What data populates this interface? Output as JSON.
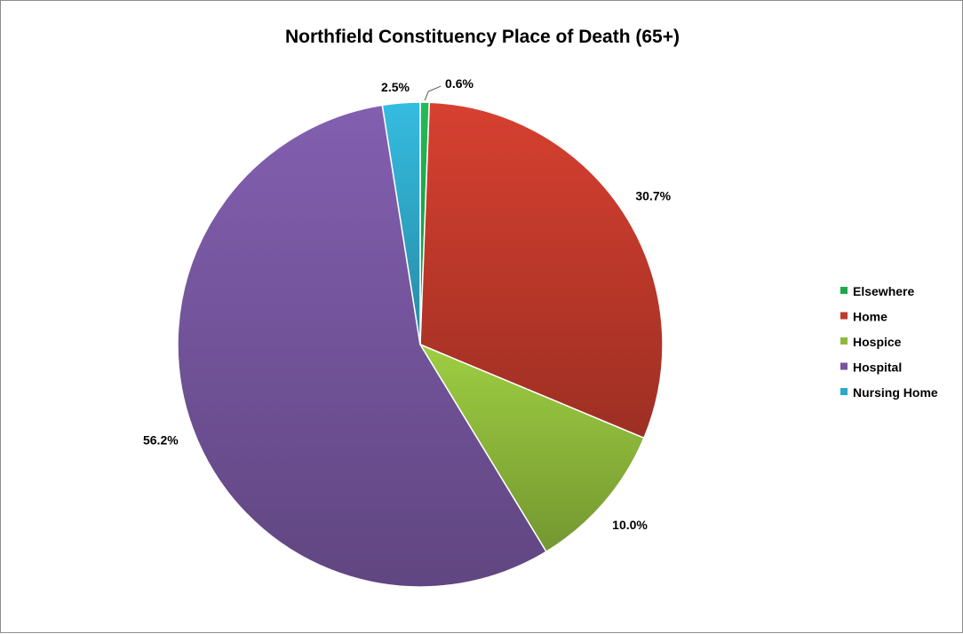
{
  "chart_data": {
    "type": "pie",
    "title": "Northfield Constituency Place of Death (65+)",
    "categories": [
      "Elsewhere",
      "Home",
      "Hospice",
      "Hospital",
      "Nursing Home"
    ],
    "values": [
      0.6,
      30.7,
      10.0,
      56.2,
      2.5
    ],
    "data_labels": [
      "0.6%",
      "30.7%",
      "10.0%",
      "56.2%",
      "2.5%"
    ],
    "value_unit": "%",
    "colors": [
      "#1ea84c",
      "#c0392b",
      "#8db83b",
      "#75559d",
      "#2fa8c8"
    ],
    "legend": {
      "position": "right",
      "entries": [
        "Elsewhere",
        "Home",
        "Hospice",
        "Hospital",
        "Nursing Home"
      ]
    },
    "start": "12 o'clock, clockwise"
  }
}
